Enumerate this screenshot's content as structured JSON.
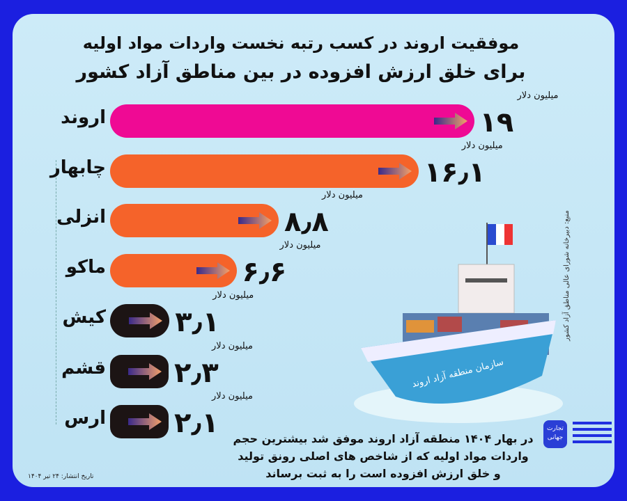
{
  "header": {
    "title_line1": "موفقیت اروند در کسب رتبه نخست واردات مواد اولیه",
    "title_line2": "برای خلق ارزش افزوده در بین مناطق آزاد کشور"
  },
  "chart_data": {
    "type": "bar",
    "orientation": "horizontal",
    "title": "موفقیت اروند در کسب رتبه نخست واردات مواد اولیه برای خلق ارزش افزوده در بین مناطق آزاد کشور",
    "unit": "میلیون دلار",
    "categories": [
      "اروند",
      "چابهار",
      "انزلی",
      "ماکو",
      "کیش",
      "قشم",
      "ارس"
    ],
    "values": [
      19,
      16.1,
      8.8,
      6.6,
      3.1,
      2.3,
      2.1
    ],
    "value_labels": [
      "۱۹",
      "۱۶٫۱",
      "۸٫۸",
      "۶٫۶",
      "۳٫۱",
      "۲٫۳",
      "۲٫۱"
    ],
    "colors": [
      "#ef0a94",
      "#f5632a",
      "#f5632a",
      "#f5632a",
      "#1c1414",
      "#1c1414",
      "#1c1414"
    ],
    "grid": false,
    "legend": "none"
  },
  "source": "منبع: دبیرخانه شورای عالی مناطق آزاد کشور",
  "summary": [
    "در بهار ۱۴۰۴ منطقه آزاد اروند موفق شد بیشترین حجم",
    "واردات مواد اولیه که از شاخص های اصلی رونق تولید",
    "و خلق ارزش افزوده است را به ثبت برساند"
  ],
  "date": "تاریخ انتشار: ۲۴ تیر ۱۴۰۴",
  "logo": {
    "text": "تجارت جهانی"
  },
  "ship": {
    "label": "سازمان منطقه آزاد اروند"
  },
  "colors": {
    "background": "#1b1fe0",
    "card": "#c5e6f5",
    "highlight": "#ef0a94",
    "bar": "#f5632a",
    "small_bar": "#1c1414"
  }
}
